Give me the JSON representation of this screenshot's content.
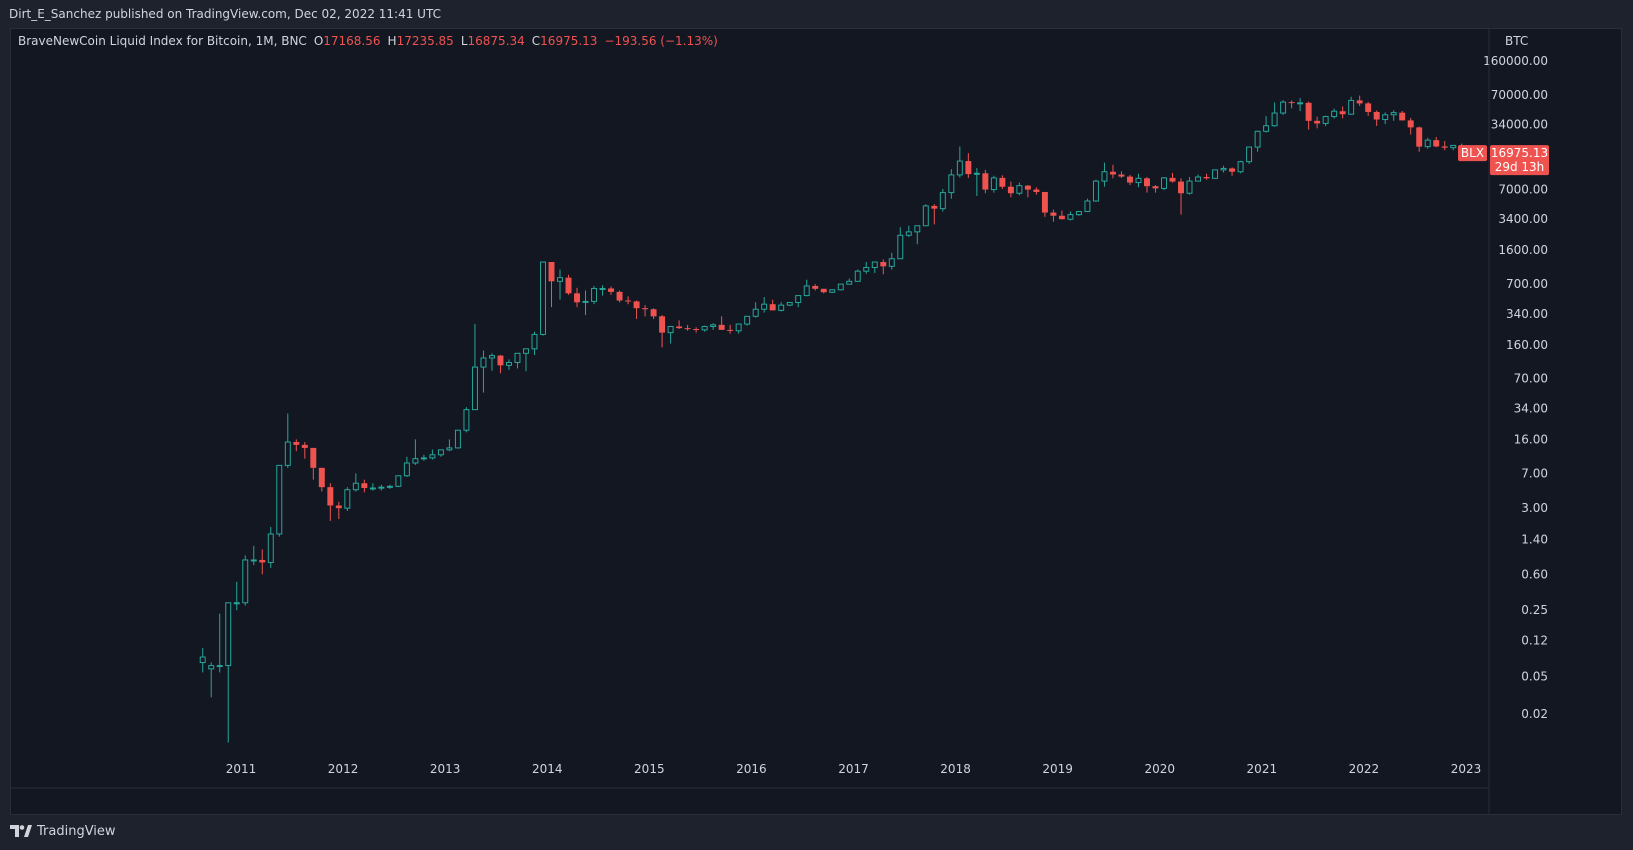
{
  "header": {
    "published_text": "Dirt_E_Sanchez published on TradingView.com, Dec 02, 2022 11:41 UTC"
  },
  "legend": {
    "symbol": "BraveNewCoin Liquid Index for Bitcoin, 1M, BNC",
    "open_label": "O",
    "open": "17168.56",
    "high_label": "H",
    "high": "17235.85",
    "low_label": "L",
    "low": "16875.34",
    "close_label": "C",
    "close": "16975.13",
    "change": "−193.56 (−1.13%)"
  },
  "axis": {
    "currency": "BTC"
  },
  "price_tag": {
    "symbol": "BLX",
    "price": "16975.13",
    "countdown": "29d 13h"
  },
  "footer": {
    "brand": "TradingView"
  },
  "colors": {
    "up": "#26a69a",
    "down": "#ef5350",
    "bg": "#131722",
    "text": "#d1d4dc"
  },
  "chart_data": {
    "type": "candlestick",
    "scale": "log",
    "interval": "1M",
    "y_ticks": [
      "160000.00",
      "70000.00",
      "34000.00",
      "16000.00",
      "7000.00",
      "3400.00",
      "1600.00",
      "700.00",
      "340.00",
      "160.00",
      "70.00",
      "34.00",
      "16.00",
      "7.00",
      "3.00",
      "1.40",
      "0.60",
      "0.25",
      "0.12",
      "0.05",
      "0.02"
    ],
    "x_ticks": [
      "2011",
      "2012",
      "2013",
      "2014",
      "2015",
      "2016",
      "2017",
      "2018",
      "2019",
      "2020",
      "2021",
      "2022",
      "2023"
    ],
    "ylim": [
      0.01,
      260000
    ],
    "start": "2010-08",
    "bars": [
      [
        0.07,
        0.1,
        0.055,
        0.08
      ],
      [
        0.06,
        0.07,
        0.03,
        0.065
      ],
      [
        0.065,
        0.23,
        0.055,
        0.065
      ],
      [
        0.065,
        0.25,
        0.01,
        0.3
      ],
      [
        0.3,
        0.5,
        0.25,
        0.3
      ],
      [
        0.3,
        0.95,
        0.28,
        0.85
      ],
      [
        0.85,
        1.2,
        0.75,
        0.85
      ],
      [
        0.85,
        1.1,
        0.6,
        0.8
      ],
      [
        0.8,
        1.9,
        0.7,
        1.6
      ],
      [
        1.6,
        8.5,
        1.5,
        8.5
      ],
      [
        8.5,
        30,
        8,
        15
      ],
      [
        15,
        16,
        12,
        14
      ],
      [
        14,
        15,
        10,
        13
      ],
      [
        13,
        13,
        6,
        8
      ],
      [
        8,
        8,
        4.5,
        5
      ],
      [
        5,
        5.5,
        2.2,
        3.2
      ],
      [
        3.2,
        3.5,
        2.3,
        3
      ],
      [
        3,
        5,
        2.8,
        4.7
      ],
      [
        4.7,
        7,
        4.5,
        5.5
      ],
      [
        5.5,
        6,
        4.4,
        4.9
      ],
      [
        4.9,
        5.5,
        4.6,
        4.9
      ],
      [
        4.9,
        5.3,
        4.6,
        5
      ],
      [
        5,
        5.3,
        4.8,
        5.1
      ],
      [
        5.1,
        6.6,
        5,
        6.6
      ],
      [
        6.6,
        10.5,
        6.4,
        9
      ],
      [
        9,
        16,
        8.6,
        10
      ],
      [
        10,
        11,
        9.5,
        10.2
      ],
      [
        10.2,
        12.5,
        9.8,
        11
      ],
      [
        11,
        12.2,
        10.5,
        12.4
      ],
      [
        12.4,
        16,
        12,
        13
      ],
      [
        13,
        20,
        12.8,
        20
      ],
      [
        20,
        35,
        19,
        33
      ],
      [
        33,
        266,
        33,
        93
      ],
      [
        93,
        139,
        50,
        116
      ],
      [
        116,
        130,
        85,
        123
      ],
      [
        123,
        125,
        80,
        97
      ],
      [
        97,
        112,
        87,
        104
      ],
      [
        104,
        130,
        90,
        130
      ],
      [
        130,
        140,
        84,
        145
      ],
      [
        145,
        220,
        125,
        206
      ],
      [
        206,
        1200,
        200,
        1200
      ],
      [
        1200,
        1200,
        400,
        750
      ],
      [
        750,
        1000,
        480,
        820
      ],
      [
        820,
        880,
        540,
        560
      ],
      [
        560,
        640,
        400,
        450
      ],
      [
        450,
        600,
        330,
        460
      ],
      [
        460,
        670,
        430,
        630
      ],
      [
        630,
        680,
        530,
        630
      ],
      [
        630,
        660,
        540,
        580
      ],
      [
        580,
        600,
        450,
        470
      ],
      [
        470,
        520,
        430,
        460
      ],
      [
        460,
        470,
        300,
        390
      ],
      [
        390,
        420,
        320,
        380
      ],
      [
        380,
        390,
        300,
        320
      ],
      [
        320,
        330,
        150,
        215
      ],
      [
        215,
        240,
        165,
        250
      ],
      [
        250,
        290,
        235,
        240
      ],
      [
        240,
        260,
        225,
        235
      ],
      [
        235,
        245,
        215,
        230
      ],
      [
        230,
        255,
        220,
        250
      ],
      [
        250,
        270,
        230,
        260
      ],
      [
        260,
        320,
        270,
        230
      ],
      [
        230,
        260,
        210,
        225
      ],
      [
        225,
        250,
        210,
        265
      ],
      [
        265,
        300,
        255,
        320
      ],
      [
        320,
        450,
        310,
        380
      ],
      [
        380,
        510,
        350,
        430
      ],
      [
        430,
        480,
        370,
        370
      ],
      [
        370,
        450,
        360,
        420
      ],
      [
        420,
        430,
        410,
        448
      ],
      [
        448,
        460,
        400,
        530
      ],
      [
        530,
        780,
        520,
        670
      ],
      [
        670,
        700,
        600,
        625
      ],
      [
        625,
        620,
        560,
        575
      ],
      [
        575,
        620,
        565,
        610
      ],
      [
        610,
        700,
        600,
        700
      ],
      [
        700,
        800,
        700,
        750
      ],
      [
        750,
        1000,
        740,
        960
      ],
      [
        960,
        1200,
        900,
        1050
      ],
      [
        1050,
        1200,
        920,
        1200
      ],
      [
        1200,
        1280,
        890,
        1080
      ],
      [
        1080,
        1500,
        1000,
        1300
      ],
      [
        1300,
        2800,
        1300,
        2300
      ],
      [
        2300,
        2900,
        2200,
        2500
      ],
      [
        2500,
        2800,
        1850,
        2900
      ],
      [
        2900,
        4900,
        2900,
        4700
      ],
      [
        4700,
        4900,
        3000,
        4400
      ],
      [
        4400,
        7100,
        4100,
        6500
      ],
      [
        6500,
        11500,
        5600,
        10000
      ],
      [
        10000,
        20000,
        9400,
        14000
      ],
      [
        14000,
        17000,
        9300,
        10200
      ],
      [
        10200,
        11800,
        6000,
        10400
      ],
      [
        10400,
        11300,
        6400,
        7000
      ],
      [
        7000,
        9800,
        6500,
        9300
      ],
      [
        9300,
        9900,
        7100,
        7500
      ],
      [
        7500,
        8500,
        5800,
        6400
      ],
      [
        6400,
        8300,
        6100,
        7700
      ],
      [
        7700,
        7800,
        5800,
        7000
      ],
      [
        7000,
        7400,
        6200,
        6600
      ],
      [
        6600,
        6600,
        3600,
        4000
      ],
      [
        4000,
        4300,
        3200,
        3700
      ],
      [
        3700,
        4200,
        3400,
        3400
      ],
      [
        3400,
        4100,
        3300,
        3800
      ],
      [
        3800,
        4100,
        3700,
        4100
      ],
      [
        4100,
        5600,
        4100,
        5300
      ],
      [
        5300,
        8900,
        5200,
        8600
      ],
      [
        8600,
        13500,
        7500,
        10800
      ],
      [
        10800,
        12800,
        9200,
        10100
      ],
      [
        10100,
        10900,
        9300,
        9600
      ],
      [
        9600,
        10000,
        7800,
        8300
      ],
      [
        8300,
        10300,
        7400,
        9200
      ],
      [
        9200,
        9500,
        6500,
        7600
      ],
      [
        7600,
        7800,
        6500,
        7200
      ],
      [
        7200,
        9500,
        6900,
        9300
      ],
      [
        9300,
        10500,
        8300,
        8500
      ],
      [
        8500,
        9200,
        3800,
        6400
      ],
      [
        6400,
        9500,
        6200,
        8600
      ],
      [
        8600,
        10100,
        8600,
        9500
      ],
      [
        9500,
        10300,
        8900,
        9200
      ],
      [
        9200,
        11400,
        9100,
        11300
      ],
      [
        11300,
        12500,
        10600,
        11700
      ],
      [
        11700,
        12000,
        9800,
        10800
      ],
      [
        10800,
        14100,
        10400,
        13800
      ],
      [
        13800,
        19900,
        13100,
        19700
      ],
      [
        19700,
        29300,
        17600,
        28900
      ],
      [
        28900,
        41900,
        28100,
        33100
      ],
      [
        33100,
        58300,
        32300,
        45100
      ],
      [
        45100,
        61700,
        43000,
        58800
      ],
      [
        58800,
        61300,
        50400,
        57700
      ],
      [
        57700,
        64800,
        47200,
        57800
      ],
      [
        57800,
        59500,
        30100,
        37300
      ],
      [
        37300,
        41300,
        31100,
        35000
      ],
      [
        35000,
        42200,
        32800,
        41400
      ],
      [
        41400,
        50300,
        39400,
        47100
      ],
      [
        47100,
        52900,
        39600,
        43800
      ],
      [
        43800,
        67000,
        43300,
        61300
      ],
      [
        61300,
        69000,
        53600,
        57000
      ],
      [
        57000,
        59100,
        42100,
        46300
      ],
      [
        46300,
        48000,
        32900,
        38500
      ],
      [
        38500,
        45800,
        34400,
        43200
      ],
      [
        43200,
        48200,
        37300,
        45500
      ],
      [
        45500,
        47400,
        37700,
        37700
      ],
      [
        37700,
        40000,
        26700,
        31800
      ],
      [
        31800,
        32400,
        17600,
        19900
      ],
      [
        19900,
        24700,
        18900,
        23300
      ],
      [
        23300,
        25200,
        19600,
        20000
      ],
      [
        20000,
        22800,
        18200,
        19400
      ],
      [
        19400,
        20500,
        18200,
        20500
      ],
      [
        20500,
        21400,
        15600,
        17168
      ],
      [
        17168.56,
        17235.85,
        16875.34,
        16975.13
      ]
    ]
  }
}
